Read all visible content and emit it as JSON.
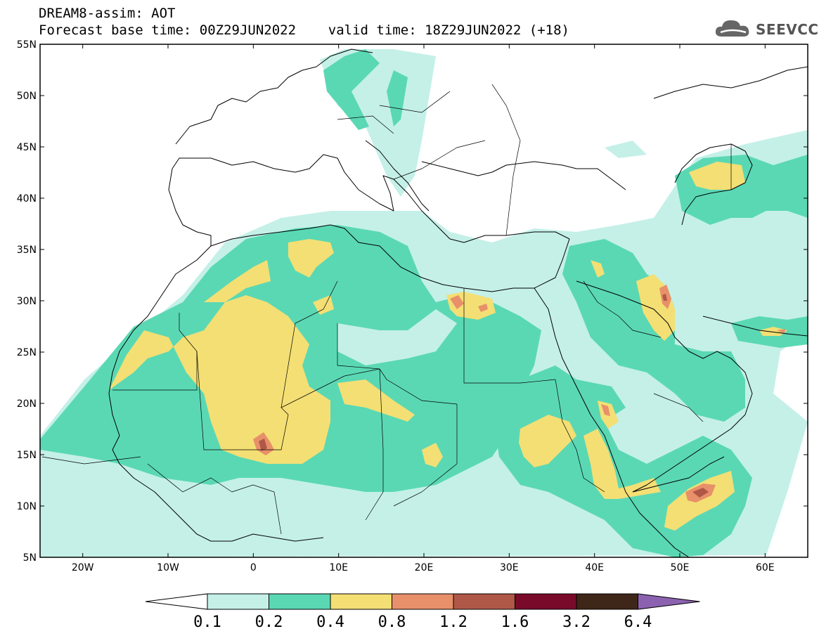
{
  "header": {
    "title_line1": "DREAM8-assim: AOT",
    "title_line2": "Forecast base time: 00Z29JUN2022    valid time: 18Z29JUN2022 (+18)",
    "logo_text": "SEEVCCC"
  },
  "map": {
    "lat_labels": [
      "55N",
      "50N",
      "45N",
      "40N",
      "35N",
      "30N",
      "25N",
      "20N",
      "15N",
      "10N",
      "5N"
    ],
    "lon_labels": [
      "20W",
      "10W",
      "0",
      "10E",
      "20E",
      "30E",
      "40E",
      "50E",
      "60E"
    ],
    "lon_range": [
      -25,
      65
    ],
    "lat_range": [
      5,
      55
    ],
    "background_color": "#ffffff",
    "border_color": "#000000"
  },
  "colorbar": {
    "labels": [
      "0.1",
      "0.2",
      "0.4",
      "0.8",
      "1.2",
      "1.6",
      "3.2",
      "6.4"
    ],
    "colors": [
      "#c4f0e8",
      "#5ad8b4",
      "#f4df74",
      "#e8906a",
      "#b05848",
      "#7a0a2a",
      "#3e2618"
    ],
    "under_color": "#ffffff",
    "over_color": "#8c62b0"
  }
}
